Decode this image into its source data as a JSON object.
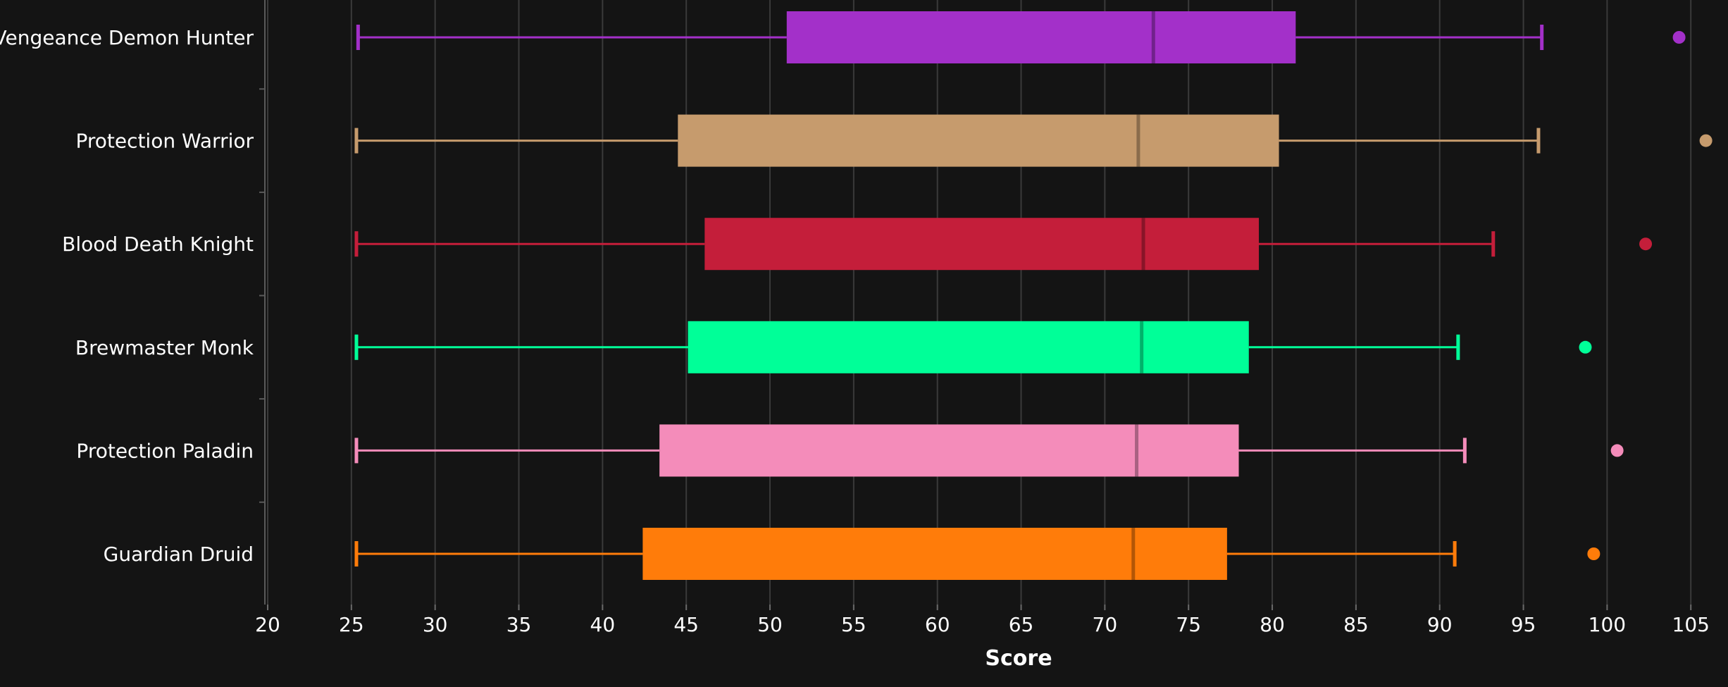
{
  "chart_data": {
    "type": "boxplot",
    "orientation": "horizontal",
    "xlabel": "Score",
    "xlim": [
      20,
      106
    ],
    "xticks": [
      20,
      25,
      30,
      35,
      40,
      45,
      50,
      55,
      60,
      65,
      70,
      75,
      80,
      85,
      90,
      95,
      100,
      105
    ],
    "xtick_labels": [
      "20",
      "25",
      "30",
      "35",
      "40",
      "45",
      "50",
      "55",
      "60",
      "65",
      "70",
      "75",
      "80",
      "85",
      "90",
      "95",
      "100",
      "105"
    ],
    "grid": "vertical",
    "background": "#141414",
    "series": [
      {
        "name": "Vengeance Demon Hunter",
        "color": "#A330C9",
        "min": 25.4,
        "q1": 51.0,
        "median": 72.9,
        "q3": 81.4,
        "max": 96.1,
        "outliers": [
          104.3
        ]
      },
      {
        "name": "Protection Warrior",
        "color": "#C69B6D",
        "min": 25.3,
        "q1": 44.5,
        "median": 72.0,
        "q3": 80.4,
        "max": 95.9,
        "outliers": [
          105.9
        ]
      },
      {
        "name": "Blood Death Knight",
        "color": "#C41E3A",
        "min": 25.3,
        "q1": 46.1,
        "median": 72.3,
        "q3": 79.2,
        "max": 93.2,
        "outliers": [
          102.3
        ]
      },
      {
        "name": "Brewmaster Monk",
        "color": "#00FF98",
        "min": 25.3,
        "q1": 45.1,
        "median": 72.2,
        "q3": 78.6,
        "max": 91.1,
        "outliers": [
          98.7
        ]
      },
      {
        "name": "Protection Paladin",
        "color": "#F48CBA",
        "min": 25.3,
        "q1": 43.4,
        "median": 71.9,
        "q3": 78.0,
        "max": 91.5,
        "outliers": [
          100.6
        ]
      },
      {
        "name": "Guardian Druid",
        "color": "#FF7C0A",
        "min": 25.3,
        "q1": 42.4,
        "median": 71.7,
        "q3": 77.3,
        "max": 90.9,
        "outliers": [
          99.2
        ]
      }
    ]
  }
}
